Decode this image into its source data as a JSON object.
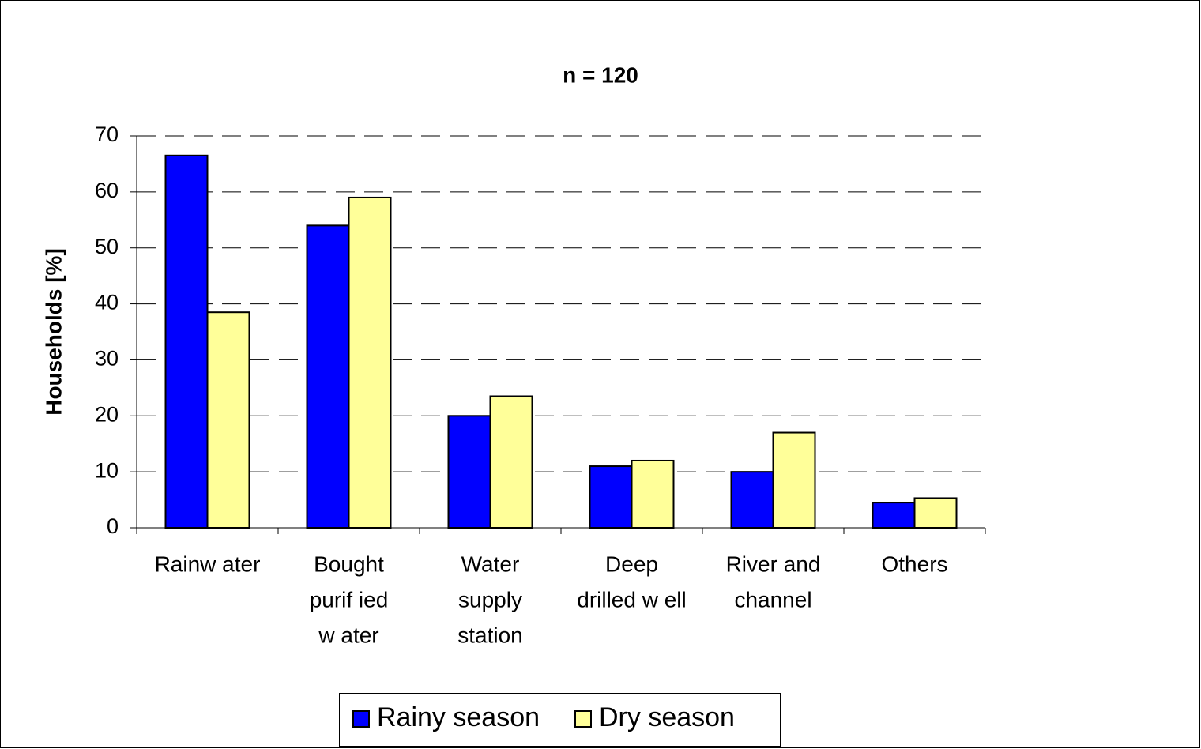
{
  "chart_data": {
    "type": "bar",
    "title": "n = 120",
    "y_label": "Households [%]",
    "categories": [
      [
        "Rainw ater"
      ],
      [
        "Bought",
        "purif ied",
        "w ater"
      ],
      [
        "Water",
        "supply",
        "station"
      ],
      [
        "Deep",
        "drilled w ell"
      ],
      [
        "River and",
        "channel"
      ],
      [
        "Others"
      ]
    ],
    "series": [
      {
        "name": "Rainy season",
        "color": "#0000ff",
        "values": [
          66.5,
          54,
          20,
          11,
          10,
          4.5
        ]
      },
      {
        "name": "Dry season",
        "color": "#ffff99",
        "values": [
          38.5,
          59,
          23.5,
          12,
          17,
          5.3
        ]
      }
    ],
    "ylim": [
      0,
      70
    ],
    "yticks": [
      0,
      10,
      20,
      30,
      40,
      50,
      60,
      70
    ],
    "grid": true,
    "legend": "bottom"
  }
}
